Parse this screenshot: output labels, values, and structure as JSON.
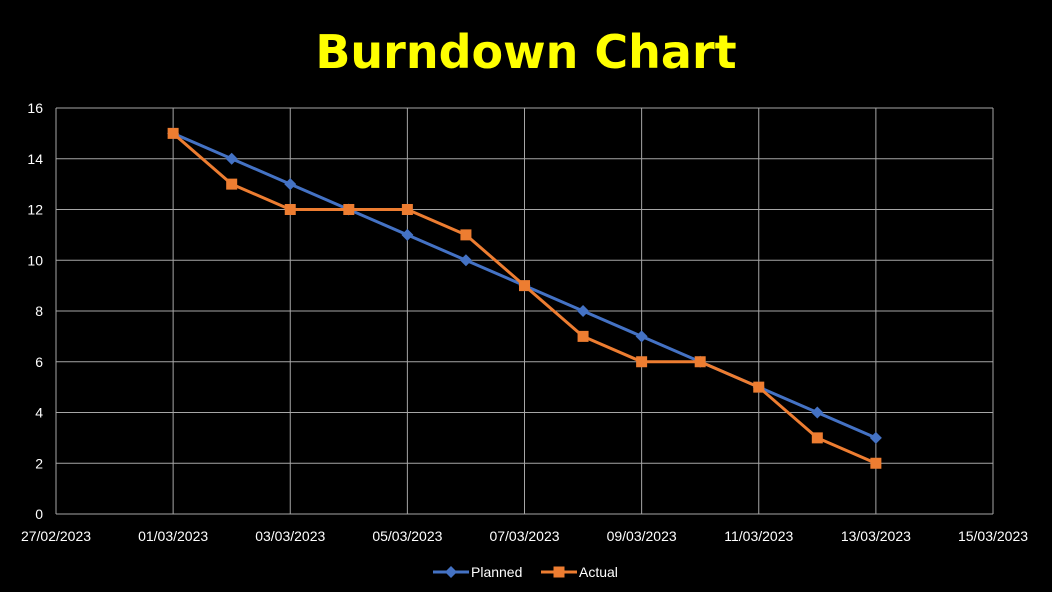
{
  "chart_data": {
    "type": "line",
    "title": "Burndown Chart",
    "xlabel": "",
    "ylabel": "",
    "x_type": "date",
    "xlim": [
      "27/02/2023",
      "15/03/2023"
    ],
    "ylim": [
      0,
      16
    ],
    "x_ticks": [
      "27/02/2023",
      "01/03/2023",
      "03/03/2023",
      "05/03/2023",
      "07/03/2023",
      "09/03/2023",
      "11/03/2023",
      "13/03/2023",
      "15/03/2023"
    ],
    "y_ticks": [
      0,
      2,
      4,
      6,
      8,
      10,
      12,
      14,
      16
    ],
    "grid": true,
    "legend_position": "bottom",
    "x": [
      "01/03/2023",
      "02/03/2023",
      "03/03/2023",
      "04/03/2023",
      "05/03/2023",
      "06/03/2023",
      "07/03/2023",
      "08/03/2023",
      "09/03/2023",
      "10/03/2023",
      "11/03/2023",
      "12/03/2023",
      "13/03/2023"
    ],
    "series": [
      {
        "name": "Planned",
        "color": "#4472c4",
        "marker": "diamond",
        "values": [
          15,
          14,
          13,
          12,
          11,
          10,
          9,
          8,
          7,
          6,
          5,
          4,
          3
        ]
      },
      {
        "name": "Actual",
        "color": "#ed7d31",
        "marker": "square",
        "values": [
          15,
          13,
          12,
          12,
          12,
          11,
          9,
          7,
          6,
          6,
          5,
          3,
          2
        ]
      }
    ]
  },
  "colors": {
    "background": "#000000",
    "title": "#ffff00",
    "text": "#ffffff",
    "grid": "#a6a6a6"
  }
}
